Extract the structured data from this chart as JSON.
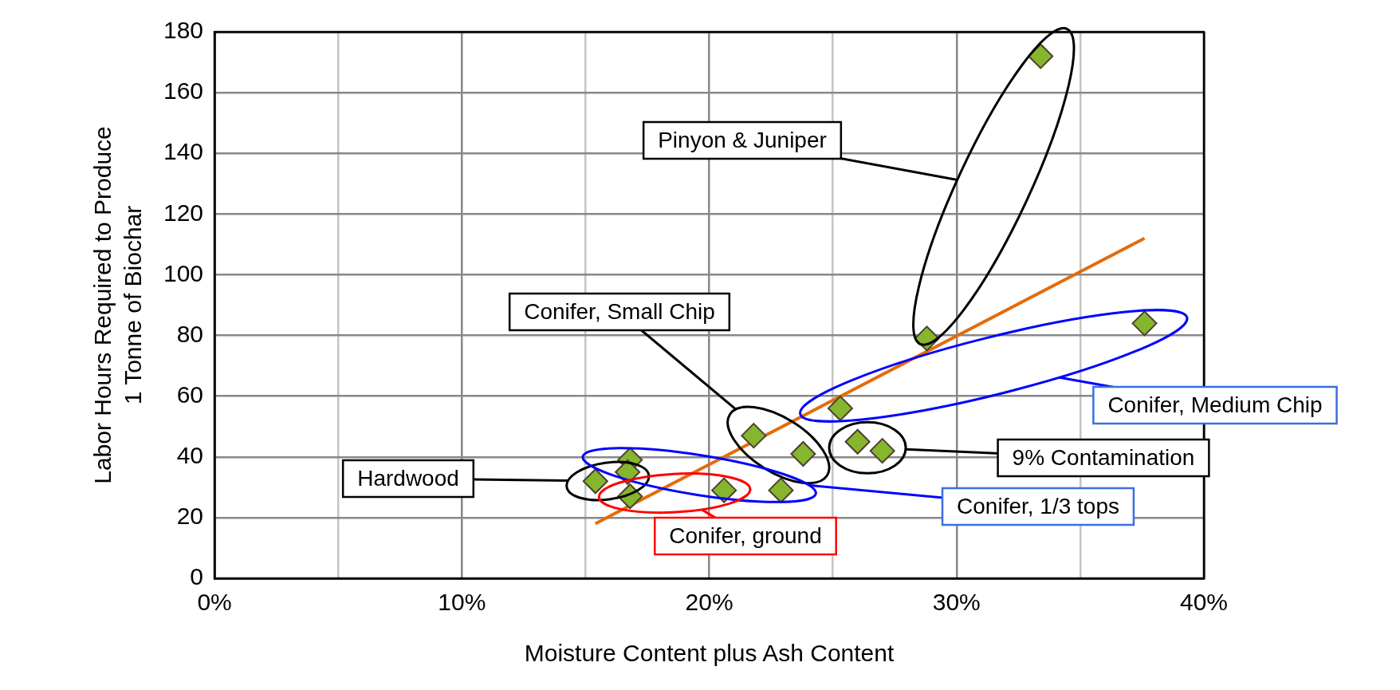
{
  "chart_data": {
    "type": "scatter",
    "xlabel": "Moisture Content plus Ash Content",
    "ylabel": "Labor Hours Required to Produce\n1 Tonne of Biochar",
    "xlim": [
      0,
      40
    ],
    "xticks": [
      {
        "value": 0,
        "label": "0%"
      },
      {
        "value": 5,
        "label": null
      },
      {
        "value": 10,
        "label": "10%"
      },
      {
        "value": 15,
        "label": null
      },
      {
        "value": 20,
        "label": "20%"
      },
      {
        "value": 25,
        "label": null
      },
      {
        "value": 30,
        "label": "30%"
      },
      {
        "value": 35,
        "label": null
      },
      {
        "value": 40,
        "label": "40%"
      }
    ],
    "ylim": [
      0,
      180
    ],
    "yticks": [
      0,
      20,
      40,
      60,
      80,
      100,
      120,
      140,
      160,
      180
    ],
    "grid": true,
    "legend": false,
    "series": [
      {
        "type": "scatter",
        "color": "#86b52e",
        "marker": "diamond",
        "x": [
          15.4,
          16.8,
          16.7,
          16.8,
          20.6,
          22.9,
          21.8,
          23.8,
          25.3,
          26.0,
          27.0,
          28.8,
          33.4,
          37.6
        ],
        "values": [
          32,
          39,
          35,
          27,
          29,
          29,
          47,
          41,
          56,
          45,
          42,
          79,
          172,
          84
        ]
      },
      {
        "type": "line",
        "color": "#e46c0a",
        "marker": "none",
        "line_style": "solid",
        "x": [
          15.4,
          37.6
        ],
        "values": [
          18,
          112
        ]
      }
    ],
    "annotations": [
      "Pinyon & Juniper",
      "Conifer, Small Chip",
      "Conifer, Medium Chip",
      "9% Contamination",
      "Hardwood",
      "Conifer, 1/3 tops",
      "Conifer, ground"
    ]
  }
}
